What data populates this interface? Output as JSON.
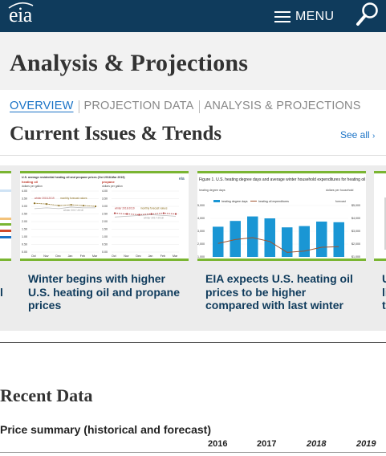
{
  "header": {
    "logo_text": "eia",
    "menu_label": "MENU",
    "colors": {
      "bar": "#0f3b5c",
      "accent_link": "#1a73c6",
      "card_rule": "#7ab532"
    }
  },
  "page": {
    "title": "Analysis & Projections"
  },
  "tabs": [
    {
      "label": "OVERVIEW",
      "active": true
    },
    {
      "label": "PROJECTION DATA",
      "active": false
    },
    {
      "label": "ANALYSIS & PROJECTIONS",
      "active": false
    }
  ],
  "issues": {
    "title": "Current Issues & Trends",
    "see_all": "See all",
    "see_all_icon": "chevron-right-icon",
    "left_clip_lines": [
      "l"
    ],
    "right_clip_lines": [
      "U",
      "li",
      "t"
    ],
    "cards": [
      {
        "title": "Winter begins with higher U.S. heating oil and propane prices",
        "thumb": {
          "caption": "U.S. average residential heating oil and propane prices (Oct 2018-Mar 2019)",
          "panel_a": {
            "label": "heating oil",
            "unit": "dollars per gallon",
            "series_a": "winter 2018-2019",
            "series_b": "monthly forecast values",
            "series_c": "winter 2017-2018",
            "yticks": [
              "4.00",
              "3.50",
              "3.00",
              "2.50",
              "2.00",
              "1.50",
              "1.00",
              "0.50",
              "0.00"
            ],
            "xticks": [
              "Oct",
              "Nov",
              "Dec",
              "Jan",
              "Feb",
              "Mar"
            ]
          },
          "panel_b": {
            "label": "propane",
            "unit": "dollars per gallon",
            "series_a": "winter 2018-2019",
            "series_b": "monthly forecast values",
            "series_c": "winter 2017-2018",
            "yticks": [
              "4.00",
              "3.50",
              "3.00",
              "2.50",
              "2.00",
              "1.50",
              "1.00",
              "0.50",
              "0.00"
            ],
            "xticks": [
              "Oct",
              "Nov",
              "Dec",
              "Jan",
              "Feb",
              "Mar"
            ]
          },
          "badge": "eia",
          "values_oil": [
            3.2,
            3.15,
            3.05,
            3.1,
            3.05,
            3.0
          ],
          "values_oil_prev": [
            2.85,
            2.9,
            2.85,
            2.95,
            2.9,
            2.9
          ],
          "values_propane": [
            2.55,
            2.5,
            2.45,
            2.5,
            2.55,
            2.5
          ],
          "values_propane_prev": [
            2.3,
            2.35,
            2.4,
            2.45,
            2.4,
            2.35
          ]
        }
      },
      {
        "title": "EIA expects U.S. heating oil prices to be higher compared with last winter",
        "thumb": {
          "caption": "Figure 1. U.S. heating degree days and average winter household expenditures for heating oil",
          "left_unit": "heating degree days",
          "right_unit": "dollars per household",
          "forecast_label": "forecast",
          "legend_bars": "heating degree days",
          "legend_line": "heating oil expenditures",
          "yticks_left": [
            "5,000",
            "4,000",
            "3,000",
            "2,000",
            "1,000"
          ],
          "yticks_right": [
            "$5,000",
            "$4,000",
            "$3,000",
            "$2,000",
            "$1,000"
          ],
          "bars": [
            3350,
            3800,
            4150,
            4000,
            3300,
            3400,
            3750,
            3700
          ],
          "expenditures": [
            2050,
            2350,
            2500,
            2200,
            1350,
            1450,
            1750,
            1800
          ]
        }
      }
    ]
  },
  "recent": {
    "title": "Recent Data",
    "summary_label": "Price summary (historical and forecast)",
    "years": [
      "2016",
      "2017",
      "2018",
      "2019"
    ]
  }
}
